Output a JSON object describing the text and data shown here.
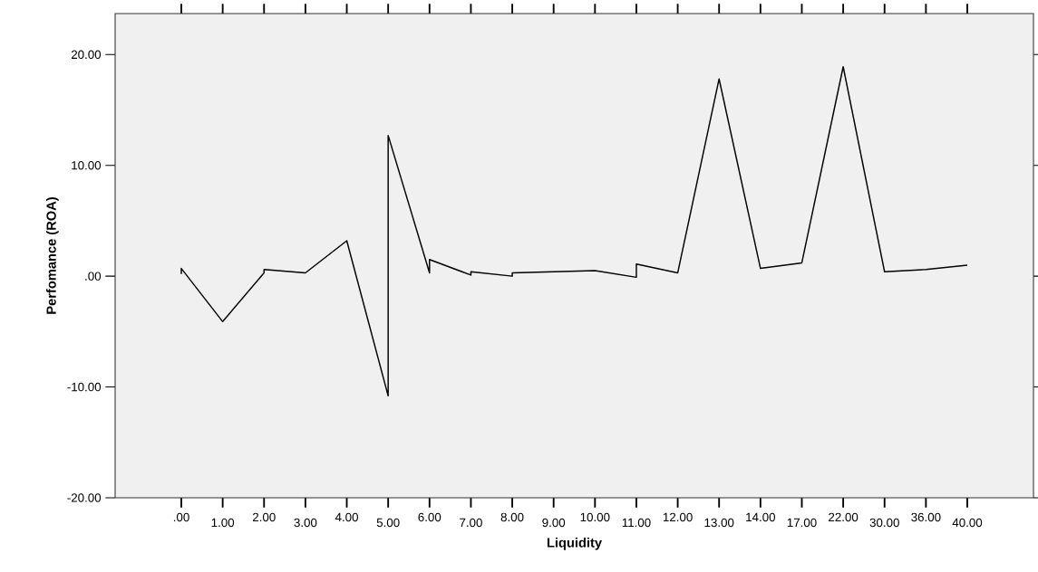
{
  "chart_data": {
    "type": "line",
    "xlabel": "Liquidity",
    "ylabel": "Perfomance (ROA)",
    "categories": [
      ".00",
      "1.00",
      "2.00",
      "3.00",
      "4.00",
      "5.00",
      "6.00",
      "7.00",
      "8.00",
      "9.00",
      "10.00",
      "11.00",
      "12.00",
      "13.00",
      "14.00",
      "17.00",
      "22.00",
      "30.00",
      "36.00",
      "40.00"
    ],
    "series": [
      {
        "color": "#000000",
        "x": [
          ".00",
          ".00",
          "1.00",
          "2.00",
          "2.00",
          "3.00",
          "4.00",
          "5.00",
          "5.00",
          "6.00",
          "6.00",
          "7.00",
          "7.00",
          "8.00",
          "8.00",
          "9.00",
          "10.00",
          "11.00",
          "11.00",
          "12.00",
          "13.00",
          "14.00",
          "17.00",
          "22.00",
          "30.00",
          "36.00",
          "40.00"
        ],
        "values": [
          0.2,
          0.7,
          -4.1,
          0.3,
          0.6,
          0.3,
          3.2,
          -10.8,
          12.7,
          0.3,
          1.5,
          0.1,
          0.4,
          0.0,
          0.3,
          0.4,
          0.5,
          -0.1,
          1.1,
          0.3,
          17.8,
          0.7,
          1.2,
          18.9,
          0.4,
          0.6,
          1.0
        ]
      }
    ],
    "ylim": [
      -20,
      23.7
    ],
    "yticks": [
      {
        "value": -20,
        "label": "-20.00"
      },
      {
        "value": -10,
        "label": "-10.00"
      },
      {
        "value": 0,
        "label": ".00"
      },
      {
        "value": 10,
        "label": "10.00"
      },
      {
        "value": 20,
        "label": "20.00"
      }
    ]
  }
}
